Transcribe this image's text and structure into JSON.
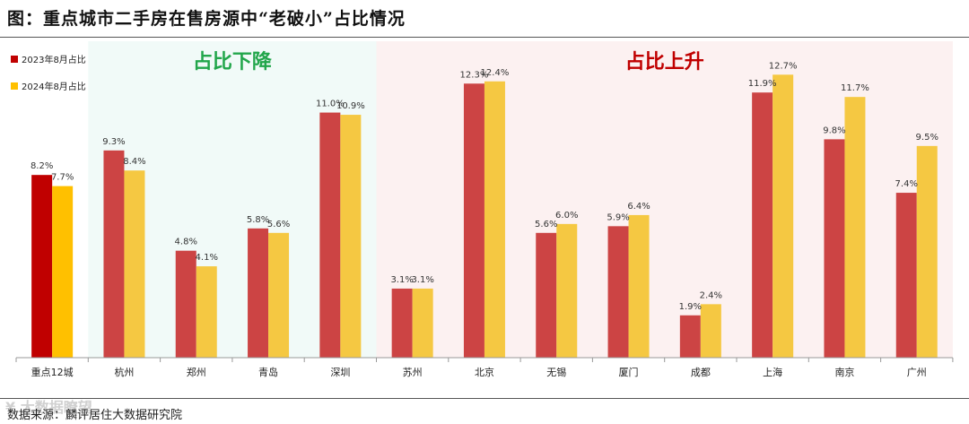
{
  "page": {
    "title": "图：重点城市二手房在售房源中“老破小”占比情况",
    "source": "数据来源：麟评居住大数据研究院",
    "watermark": "¥ 大数据瞭望"
  },
  "colors": {
    "series_2023": "#CC4444",
    "series_2023_highlight": "#C00000",
    "series_2024": "#F5C842",
    "series_2024_highlight": "#FFC000",
    "region_down_bg": "#F1FAF8",
    "region_up_bg": "#FCF1F1",
    "region_down_text": "#22A64B",
    "region_up_text": "#C00000"
  },
  "chart_data": {
    "type": "bar",
    "categories": [
      "重点12城",
      "杭州",
      "郑州",
      "青岛",
      "深圳",
      "苏州",
      "北京",
      "无锡",
      "厦门",
      "成都",
      "上海",
      "南京",
      "广州"
    ],
    "series": [
      {
        "name": "2023年8月占比",
        "values": [
          8.2,
          9.3,
          4.8,
          5.8,
          11.0,
          3.1,
          12.3,
          5.6,
          5.9,
          1.9,
          11.9,
          9.8,
          7.4
        ]
      },
      {
        "name": "2024年8月占比",
        "values": [
          7.7,
          8.4,
          4.1,
          5.6,
          10.9,
          3.1,
          12.4,
          6.0,
          6.4,
          2.4,
          12.7,
          11.7,
          9.5
        ]
      }
    ],
    "data_labels": [
      [
        "8.2%",
        "9.3%",
        "4.8%",
        "5.8%",
        "11.0%",
        "3.1%",
        "12.3%",
        "5.6%",
        "5.9%",
        "1.9%",
        "11.9%",
        "9.8%",
        "7.4%"
      ],
      [
        "7.7%",
        "8.4%",
        "4.1%",
        "5.6%",
        "10.9%",
        "3.1%",
        "12.4%",
        "6.0%",
        "6.4%",
        "2.4%",
        "12.7%",
        "11.7%",
        "9.5%"
      ]
    ],
    "annotations": {
      "region_down_label": "占比下降",
      "region_up_label": "占比上升",
      "region_down_categories": [
        "杭州",
        "郑州",
        "青岛",
        "深圳"
      ],
      "region_up_categories": [
        "苏州",
        "北京",
        "无锡",
        "厦门",
        "成都",
        "上海",
        "南京",
        "广州"
      ]
    },
    "legend_position": "top-left",
    "ylim": [
      0,
      14
    ],
    "grid": false
  }
}
